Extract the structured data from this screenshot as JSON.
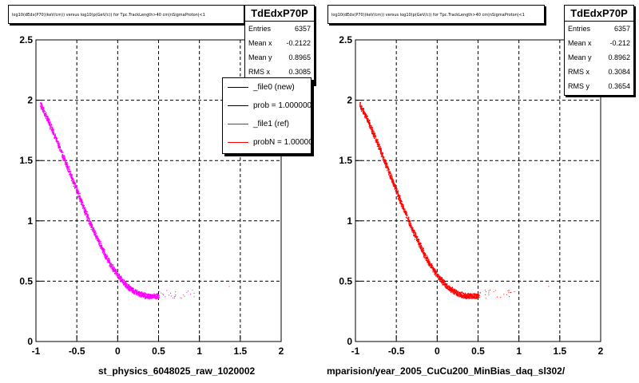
{
  "colors": {
    "pad_a_points": "#ff00ff",
    "pad_b_points": "#ff0000",
    "legend_new": "#000000",
    "legend_ref": "#ff0000"
  },
  "pads": [
    {
      "hist_title": "log10(dEdx(P70)(keV/cm)) versus log10(p(GeV/c)) for Tpc.TrackLength>40 cm|nSigmaProton|<1",
      "x_axis_title": "st_physics_6048025_raw_1020002",
      "stats": {
        "name": "TdEdxP70P",
        "rows": [
          {
            "label": "Entries",
            "value": "6357"
          },
          {
            "label": "Mean x",
            "value": "-0.2122"
          },
          {
            "label": "Mean y",
            "value": "0.8965"
          },
          {
            "label": "RMS x",
            "value": "0.3085"
          }
        ]
      },
      "legend": [
        {
          "label": "_file0 (new)",
          "color": "#000000"
        },
        {
          "label": "prob = 1.000000",
          "color": "#000000"
        },
        {
          "label": "_file1 (ref)",
          "color": "#ff0000"
        },
        {
          "label": "probN = 1.000000",
          "color": "#ff0000"
        }
      ]
    },
    {
      "hist_title": "log10(dEdx(P70)(keV/cm)) versus log10(p(GeV/c)) for Tpc.TrackLength>40 cm|nSigmaProton|<1",
      "x_axis_title": "mparision/year_2005_CuCu200_MinBias_daq_sl302/",
      "stats": {
        "name": "TdEdxP70P",
        "rows": [
          {
            "label": "Entries",
            "value": "6357"
          },
          {
            "label": "Mean x",
            "value": "-0.212"
          },
          {
            "label": "Mean y",
            "value": "0.8962"
          },
          {
            "label": "RMS x",
            "value": "0.3084"
          },
          {
            "label": "RMS y",
            "value": "0.3654"
          }
        ]
      }
    }
  ],
  "chart_data": [
    {
      "type": "scatter",
      "title": "log10(dEdx(P70)(keV/cm)) versus log10(p(GeV/c)) for Tpc.TrackLength>40 cm|nSigmaProton|<1",
      "xlabel": "st_physics_6048025_raw_1020002",
      "ylabel": "",
      "xlim": [
        -1,
        2
      ],
      "ylim": [
        0,
        2.5
      ],
      "x_ticks": [
        "-1",
        "-0.5",
        "0",
        "0.5",
        "1",
        "1.5",
        "2"
      ],
      "y_ticks": [
        "0",
        "0.5",
        "1",
        "1.5",
        "2",
        "2.5"
      ],
      "grid": true,
      "series": [
        {
          "x": [
            -0.95,
            -0.9,
            -0.85,
            -0.8,
            -0.75,
            -0.7,
            -0.65,
            -0.6,
            -0.55,
            -0.5,
            -0.45,
            -0.4,
            -0.35,
            -0.3,
            -0.25,
            -0.2,
            -0.15,
            -0.1,
            -0.05,
            0.0,
            0.05,
            0.1,
            0.15,
            0.2,
            0.25,
            0.3,
            0.35,
            0.4,
            0.45,
            0.5
          ],
          "y": [
            1.97,
            1.9,
            1.83,
            1.75,
            1.67,
            1.59,
            1.5,
            1.42,
            1.33,
            1.25,
            1.16,
            1.08,
            1.0,
            0.92,
            0.85,
            0.78,
            0.71,
            0.65,
            0.6,
            0.55,
            0.51,
            0.47,
            0.44,
            0.42,
            0.4,
            0.39,
            0.38,
            0.38,
            0.38,
            0.38
          ]
        }
      ]
    },
    {
      "type": "scatter",
      "title": "log10(dEdx(P70)(keV/cm)) versus log10(p(GeV/c)) for Tpc.TrackLength>40 cm|nSigmaProton|<1",
      "xlabel": "mparision/year_2005_CuCu200_MinBias_daq_sl302/",
      "ylabel": "",
      "xlim": [
        -1,
        2
      ],
      "ylim": [
        0,
        2.5
      ],
      "x_ticks": [
        "-1",
        "-0.5",
        "0",
        "0.5",
        "1",
        "1.5",
        "2"
      ],
      "y_ticks": [
        "0",
        "0.5",
        "1",
        "1.5",
        "2",
        "2.5"
      ],
      "grid": true,
      "series": [
        {
          "x": [
            -0.95,
            -0.9,
            -0.85,
            -0.8,
            -0.75,
            -0.7,
            -0.65,
            -0.6,
            -0.55,
            -0.5,
            -0.45,
            -0.4,
            -0.35,
            -0.3,
            -0.25,
            -0.2,
            -0.15,
            -0.1,
            -0.05,
            0.0,
            0.05,
            0.1,
            0.15,
            0.2,
            0.25,
            0.3,
            0.35,
            0.4,
            0.45,
            0.5
          ],
          "y": [
            1.97,
            1.9,
            1.83,
            1.75,
            1.67,
            1.59,
            1.5,
            1.42,
            1.33,
            1.25,
            1.16,
            1.08,
            1.0,
            0.92,
            0.85,
            0.78,
            0.71,
            0.65,
            0.6,
            0.55,
            0.51,
            0.47,
            0.44,
            0.42,
            0.4,
            0.39,
            0.38,
            0.38,
            0.38,
            0.38
          ]
        }
      ]
    }
  ]
}
